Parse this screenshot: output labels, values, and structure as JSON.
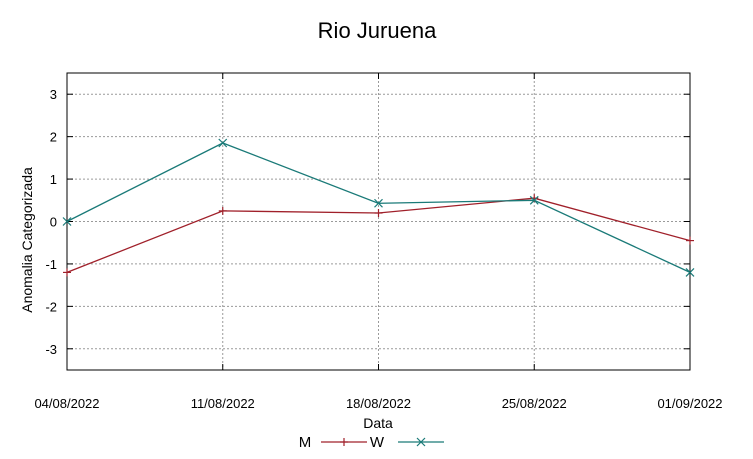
{
  "chart_data": {
    "type": "line",
    "title": "Rio Juruena",
    "xlabel": "Data",
    "ylabel": "Anomalia Categorizada",
    "categories": [
      "04/08/2022",
      "11/08/2022",
      "18/08/2022",
      "25/08/2022",
      "01/09/2022"
    ],
    "ylim": [
      -3.5,
      3.5
    ],
    "yticks": [
      -3,
      -2,
      -1,
      0,
      1,
      2,
      3
    ],
    "grid": true,
    "legend_position": "bottom",
    "series": [
      {
        "name": "M",
        "color": "#a0202a",
        "marker": "plus",
        "values": [
          -1.2,
          0.25,
          0.2,
          0.55,
          -0.45
        ]
      },
      {
        "name": "W",
        "color": "#1a7a78",
        "marker": "x",
        "values": [
          0.0,
          1.85,
          0.43,
          0.5,
          -1.2
        ]
      }
    ]
  }
}
